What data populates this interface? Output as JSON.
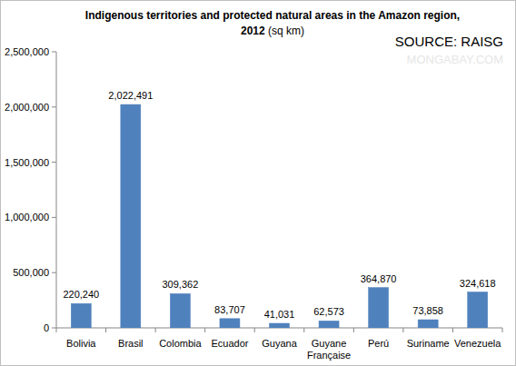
{
  "chart_data": {
    "type": "bar",
    "title": "Indigenous territories and protected natural areas in the Amazon region, 2012 (sq km)",
    "annotations": [
      "SOURCE: RAISG",
      "MONGABAY.COM"
    ],
    "categories": [
      "Bolivia",
      "Brasil",
      "Colombia",
      "Ecuador",
      "Guyana",
      "Guyane Française",
      "Perú",
      "Suriname",
      "Venezuela"
    ],
    "values": [
      220240,
      2022491,
      309362,
      83707,
      41031,
      62573,
      364870,
      73858,
      324618
    ],
    "value_labels": [
      "220,240",
      "2,022,491",
      "309,362",
      "83,707",
      "41,031",
      "62,573",
      "364,870",
      "73,858",
      "324,618"
    ],
    "data_labels": true,
    "color": "#4f81bd",
    "ylim": [
      0,
      2500000
    ],
    "yticks": [
      0,
      {
        "value": 500000,
        "label": "500,000"
      },
      {
        "value": 1000000,
        "label": "1,000,000"
      },
      {
        "value": 1500000,
        "label": "1,500,000"
      },
      {
        "value": 2000000,
        "label": "2,000,000"
      },
      {
        "value": 2500000,
        "label": "2,500,000"
      }
    ],
    "grid": false
  }
}
